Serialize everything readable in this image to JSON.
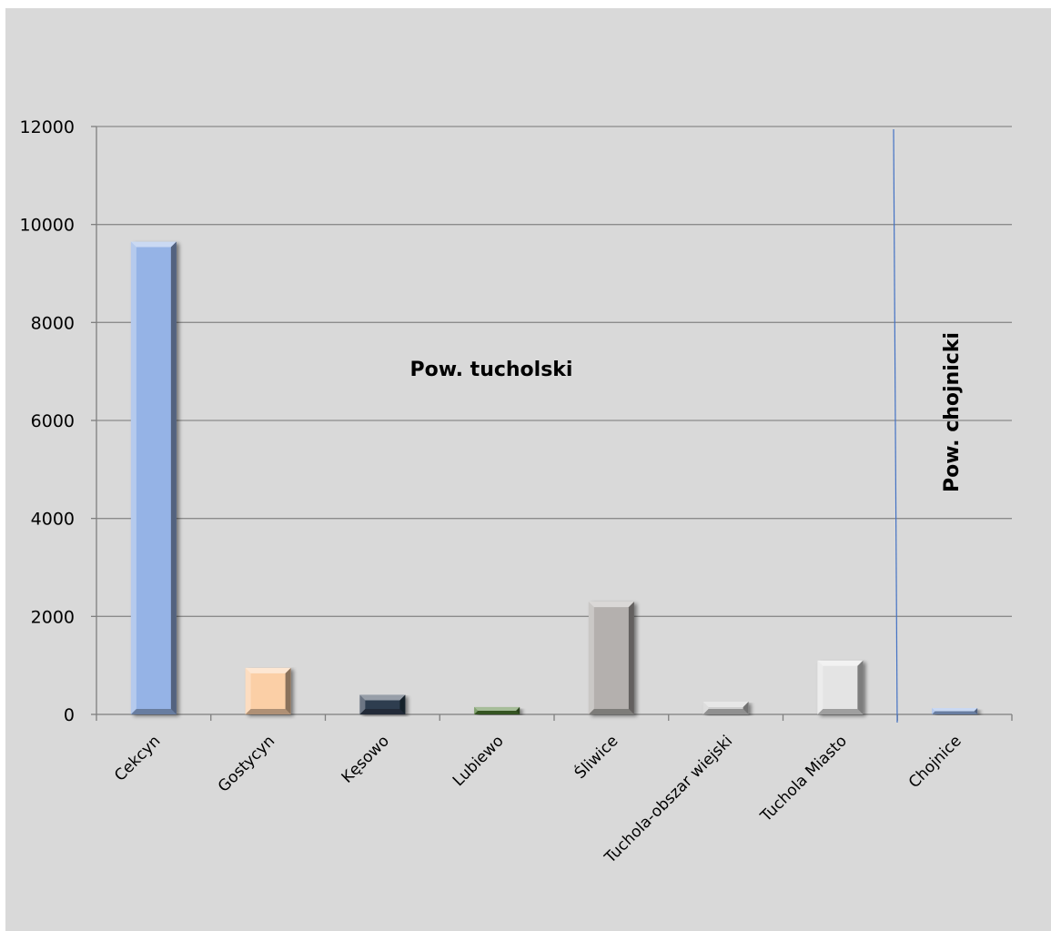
{
  "chart_data": {
    "type": "bar",
    "title": "",
    "xlabel": "",
    "ylabel": "",
    "categories": [
      "Cekcyn",
      "Gostycyn",
      "Kęsowo",
      "Lubiewo",
      "Śliwice",
      "Tuchola-obszar wiejski",
      "Tuchola Miasto",
      "Chojnice"
    ],
    "values": [
      9650,
      950,
      400,
      150,
      2300,
      260,
      1100,
      130
    ],
    "ylim": [
      0,
      12000
    ],
    "yticks": [
      0,
      2000,
      4000,
      6000,
      8000,
      10000,
      12000
    ],
    "ytick_labels": [
      "0",
      "2000",
      "4000",
      "6000",
      "8000",
      "10000",
      "12000"
    ],
    "grid": true,
    "legend": "none",
    "bar_colors": [
      "#95b3e6",
      "#fbcfa6",
      "#2e3c50",
      "#4d7a32",
      "#b4b0ae",
      "#cfcfcf",
      "#e4e4e4",
      "#95b3e6"
    ],
    "background_color": "#d9d9d9",
    "divider_color": "#4472c4",
    "annotations": [
      {
        "text": "Pow. tucholski",
        "group": "tucholski"
      },
      {
        "text": "Pow. chojnicki",
        "group": "chojnicki"
      }
    ]
  }
}
